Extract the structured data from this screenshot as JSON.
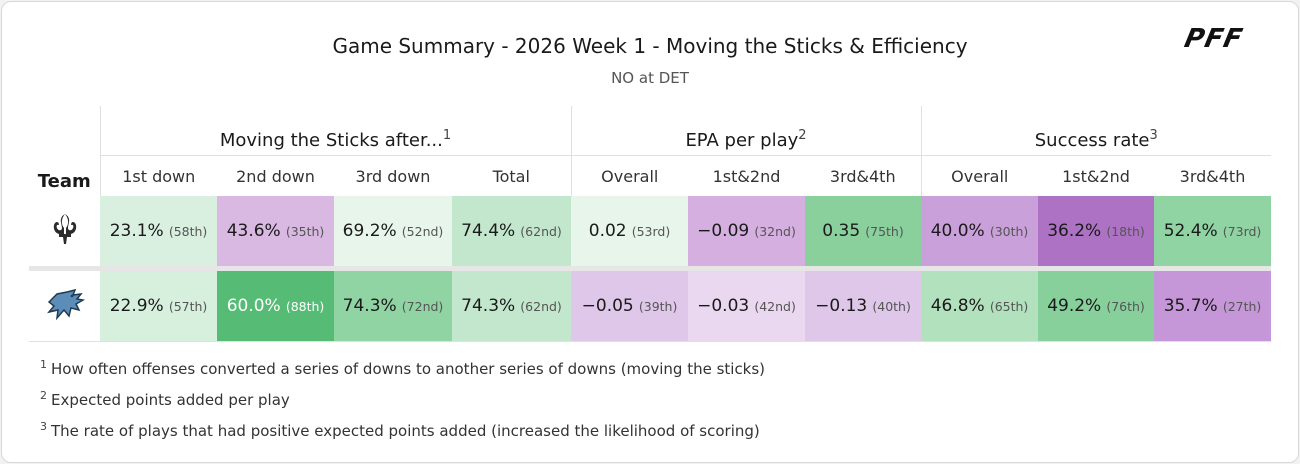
{
  "header": {
    "title": "Game Summary - 2026 Week 1 - Moving the Sticks & Efficiency",
    "subtitle": "NO at DET",
    "logo": "PFF"
  },
  "table": {
    "team_header": "Team",
    "groups": [
      {
        "label": "Moving the Sticks after...",
        "note": "1",
        "columns": [
          "1st down",
          "2nd down",
          "3rd down",
          "Total"
        ]
      },
      {
        "label": "EPA per play",
        "note": "2",
        "columns": [
          "Overall",
          "1st&2nd",
          "3rd&4th"
        ]
      },
      {
        "label": "Success rate",
        "note": "3",
        "columns": [
          "Overall",
          "1st&2nd",
          "3rd&4th"
        ]
      }
    ],
    "rows": [
      {
        "team": "NO",
        "cells": [
          {
            "value": "23.1%",
            "rank": "(58th)",
            "color": "#d9f0e0"
          },
          {
            "value": "43.6%",
            "rank": "(35th)",
            "color": "#d9b8e2"
          },
          {
            "value": "69.2%",
            "rank": "(52nd)",
            "color": "#e7f5eb"
          },
          {
            "value": "74.4%",
            "rank": "(62nd)",
            "color": "#c2e7cc"
          },
          {
            "value": "0.02",
            "rank": "(53rd)",
            "color": "#e7f5eb"
          },
          {
            "value": "−0.09",
            "rank": "(32nd)",
            "color": "#d4afe0"
          },
          {
            "value": "0.35",
            "rank": "(75th)",
            "color": "#89d09d"
          },
          {
            "value": "40.0%",
            "rank": "(30th)",
            "color": "#c9a0d9"
          },
          {
            "value": "36.2%",
            "rank": "(18th)",
            "color": "#ae72c5"
          },
          {
            "value": "52.4%",
            "rank": "(73rd)",
            "color": "#90d4a3"
          }
        ]
      },
      {
        "team": "DET",
        "cells": [
          {
            "value": "22.9%",
            "rank": "(57th)",
            "color": "#d7efdd"
          },
          {
            "value": "60.0%",
            "rank": "(88th)",
            "color": "#56bc75",
            "text_color": "#ffffff"
          },
          {
            "value": "74.3%",
            "rank": "(72nd)",
            "color": "#91d4a3"
          },
          {
            "value": "74.3%",
            "rank": "(62nd)",
            "color": "#c2e7cc"
          },
          {
            "value": "−0.05",
            "rank": "(39th)",
            "color": "#dfc7e9"
          },
          {
            "value": "−0.03",
            "rank": "(42nd)",
            "color": "#e9d8ef"
          },
          {
            "value": "−0.13",
            "rank": "(40th)",
            "color": "#dfc7e9"
          },
          {
            "value": "46.8%",
            "rank": "(65th)",
            "color": "#b2e1be"
          },
          {
            "value": "49.2%",
            "rank": "(76th)",
            "color": "#87d09c"
          },
          {
            "value": "35.7%",
            "rank": "(27th)",
            "color": "#c697d8"
          }
        ]
      }
    ]
  },
  "footnotes": [
    {
      "mark": "1",
      "text": "How often offenses converted a series of downs to another series of downs (moving the sticks)"
    },
    {
      "mark": "2",
      "text": "Expected points added per play"
    },
    {
      "mark": "3",
      "text": "The rate of plays that had positive expected points added (increased the likelihood of scoring)"
    }
  ]
}
